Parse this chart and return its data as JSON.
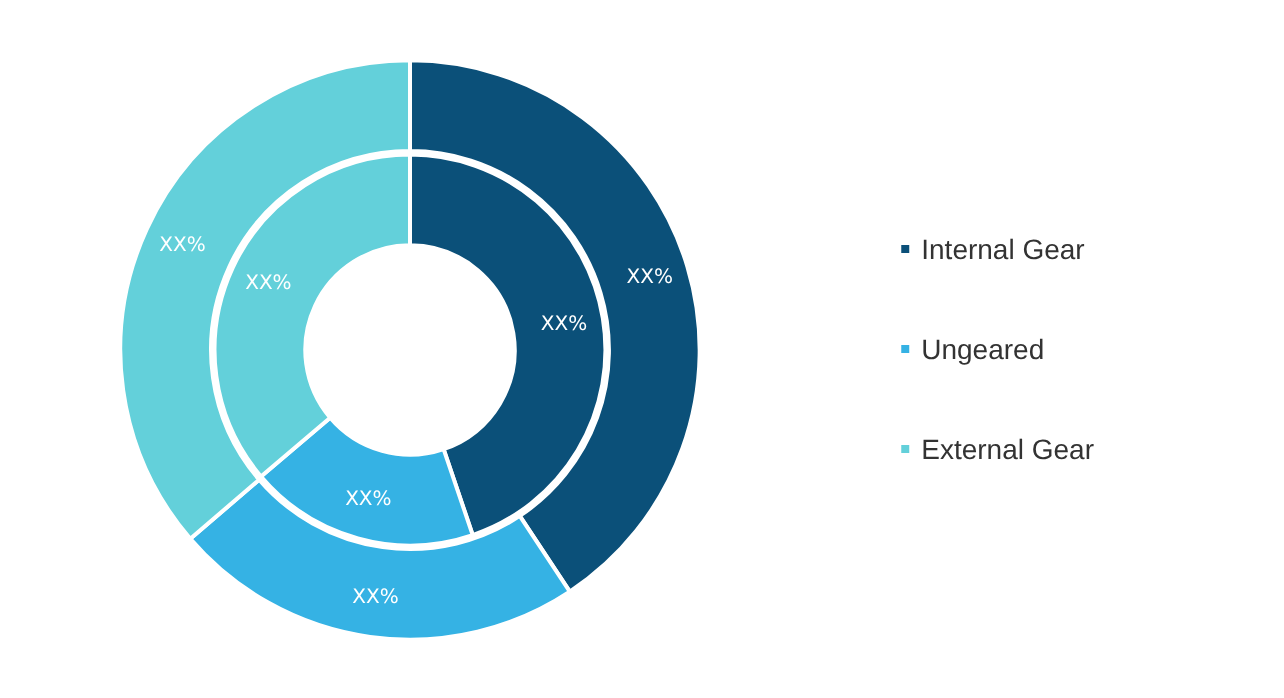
{
  "chart_data": {
    "type": "donut",
    "categories": [
      "Internal Gear",
      "Ungeared",
      "External Gear"
    ],
    "colors": [
      "#0b5079",
      "#35b2e4",
      "#63d0da"
    ],
    "series": [
      {
        "values": [
          40.7,
          23,
          36.3
        ],
        "value_labels": [
          "XX%",
          "XX%",
          "XX%"
        ]
      },
      {
        "values": [
          44.8,
          19,
          36.2
        ],
        "value_labels": [
          "XX%",
          "XX%",
          "XX%"
        ]
      }
    ],
    "legend": "right"
  }
}
